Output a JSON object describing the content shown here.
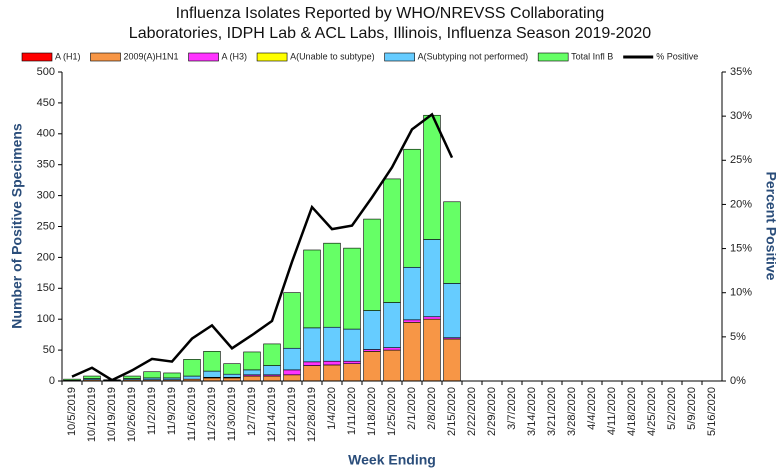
{
  "chart_data": {
    "type": "bar",
    "title": [
      "Influenza  Isolates Reported by WHO/NREVSS Collaborating",
      "Laboratories, IDPH Lab & ACL Labs, Illinois, Influenza Season 2019-2020"
    ],
    "x_label": "Week Ending",
    "y_label": "Number of  Positive Specimens",
    "y2_label": "Percent Positive",
    "stacked": true,
    "categories": [
      "10/5/2019",
      "10/12/2019",
      "10/19/2019",
      "10/26/2019",
      "11/2/2019",
      "11/9/2019",
      "11/16/2019",
      "11/23/2019",
      "11/30/2019",
      "12/7/2019",
      "12/14/2019",
      "12/21/2019",
      "12/28/2019",
      "1/4/2020",
      "1/11/2020",
      "1/18/2020",
      "1/25/2020",
      "2/1/2020",
      "2/8/2020",
      "2/15/2020",
      "2/22/2020",
      "2/29/2020",
      "3/7/2020",
      "3/14/2020",
      "3/21/2020",
      "3/28/2020",
      "4/4/2020",
      "4/11/2020",
      "4/18/2020",
      "4/25/2020",
      "5/2/2020",
      "5/9/2020",
      "5/16/2020"
    ],
    "series": [
      {
        "name": "A (H1)",
        "color": "#ff0000",
        "values": [
          0,
          0,
          0,
          0,
          0,
          0,
          0,
          0,
          0,
          0,
          0,
          0,
          0,
          0,
          0,
          0,
          0,
          0,
          0,
          0,
          0,
          0,
          0,
          0,
          0,
          0,
          0,
          0,
          0,
          0,
          0,
          0,
          0
        ]
      },
      {
        "name": "2009(A)H1N1",
        "color": "#f79646",
        "values": [
          1,
          2,
          0,
          2,
          2,
          2,
          3,
          5,
          5,
          8,
          8,
          10,
          25,
          26,
          28,
          48,
          50,
          95,
          100,
          68,
          0,
          0,
          0,
          0,
          0,
          0,
          0,
          0,
          0,
          0,
          0,
          0,
          0
        ]
      },
      {
        "name": "A (H3)",
        "color": "#ff33ff",
        "values": [
          0,
          0,
          0,
          0,
          0,
          0,
          0,
          1,
          1,
          2,
          2,
          8,
          6,
          6,
          4,
          3,
          4,
          4,
          4,
          2,
          0,
          0,
          0,
          0,
          0,
          0,
          0,
          0,
          0,
          0,
          0,
          0,
          0
        ]
      },
      {
        "name": "A(Unable to subtype)",
        "color": "#ffff00",
        "values": [
          0,
          0,
          0,
          0,
          0,
          0,
          0,
          0,
          0,
          0,
          0,
          0,
          0,
          0,
          0,
          0,
          0,
          0,
          0,
          0,
          0,
          0,
          0,
          0,
          0,
          0,
          0,
          0,
          0,
          0,
          0,
          0,
          0
        ]
      },
      {
        "name": "A(Subtyping not performed)",
        "color": "#66ccff",
        "values": [
          0,
          2,
          1,
          2,
          3,
          3,
          5,
          10,
          5,
          8,
          15,
          35,
          55,
          55,
          52,
          63,
          73,
          85,
          125,
          88,
          0,
          0,
          0,
          0,
          0,
          0,
          0,
          0,
          0,
          0,
          0,
          0,
          0
        ]
      },
      {
        "name": "Total Infl B",
        "color": "#66ff66",
        "values": [
          2,
          4,
          1,
          4,
          10,
          8,
          27,
          32,
          17,
          29,
          35,
          90,
          126,
          136,
          131,
          148,
          200,
          191,
          201,
          132,
          0,
          0,
          0,
          0,
          0,
          0,
          0,
          0,
          0,
          0,
          0,
          0,
          0
        ]
      },
      {
        "name": "% Positive",
        "color": "#000000",
        "type": "line",
        "axis": "y2",
        "values": [
          0.5,
          1.5,
          0.1,
          1.2,
          2.5,
          2.2,
          4.8,
          6.3,
          3.7,
          5.2,
          6.8,
          13.5,
          19.7,
          17.2,
          17.6,
          20.8,
          24.2,
          28.5,
          30.2,
          25.3,
          null,
          null,
          null,
          null,
          null,
          null,
          null,
          null,
          null,
          null,
          null,
          null,
          null
        ]
      }
    ],
    "ylim": [
      0,
      500
    ],
    "yticks": [
      0,
      50,
      100,
      150,
      200,
      250,
      300,
      350,
      400,
      450,
      500
    ],
    "y2lim": [
      0,
      35
    ],
    "y2ticks": [
      {
        "value": 0,
        "label": "0%"
      },
      {
        "value": 5,
        "label": "5%"
      },
      {
        "value": 10,
        "label": "10%"
      },
      {
        "value": 15,
        "label": "15%"
      },
      {
        "value": 20,
        "label": "20%"
      },
      {
        "value": 25,
        "label": "25%"
      },
      {
        "value": 30,
        "label": "30%"
      },
      {
        "value": 35,
        "label": "35%"
      }
    ]
  }
}
